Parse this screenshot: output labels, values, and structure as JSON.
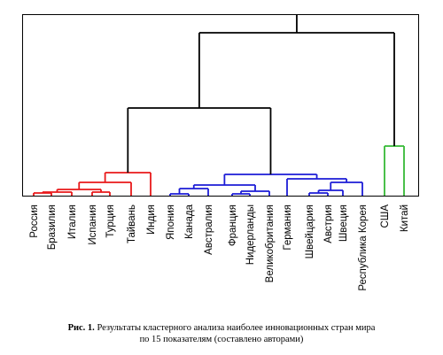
{
  "chart_data": {
    "type": "dendrogram",
    "leaves": [
      "Россия",
      "Бразилия",
      "Италия",
      "Испания",
      "Турция",
      "Тайвань",
      "Индия",
      "Япония",
      "Канада",
      "Австралия",
      "Франция",
      "Нидерланды",
      "Великобритания",
      "Германия",
      "Швейцария",
      "Австрия",
      "Швеция",
      "Республика Корея",
      "США",
      "Китай"
    ],
    "clusters": [
      {
        "members": [
          "Россия",
          "Бразилия",
          "Италия",
          "Испания",
          "Турция",
          "Тайвань",
          "Индия"
        ],
        "color": "#e8181a"
      },
      {
        "members": [
          "Япония",
          "Канада",
          "Австралия",
          "Франция",
          "Нидерланды",
          "Великобритания",
          "Германия",
          "Швейцария",
          "Австрия",
          "Швеция",
          "Республика Корея"
        ],
        "color": "#1c1cd6"
      },
      {
        "members": [
          "США",
          "Китай"
        ],
        "color": "#35b935"
      }
    ],
    "link_color": "#000000",
    "axes_visible": false,
    "frame": true
  },
  "caption": {
    "label": "Рис. 1.",
    "text_line1": " Результаты кластерного анализа наиболее инновационных стран мира",
    "text_line2": "по 15 показателям (составлено авторами)"
  }
}
